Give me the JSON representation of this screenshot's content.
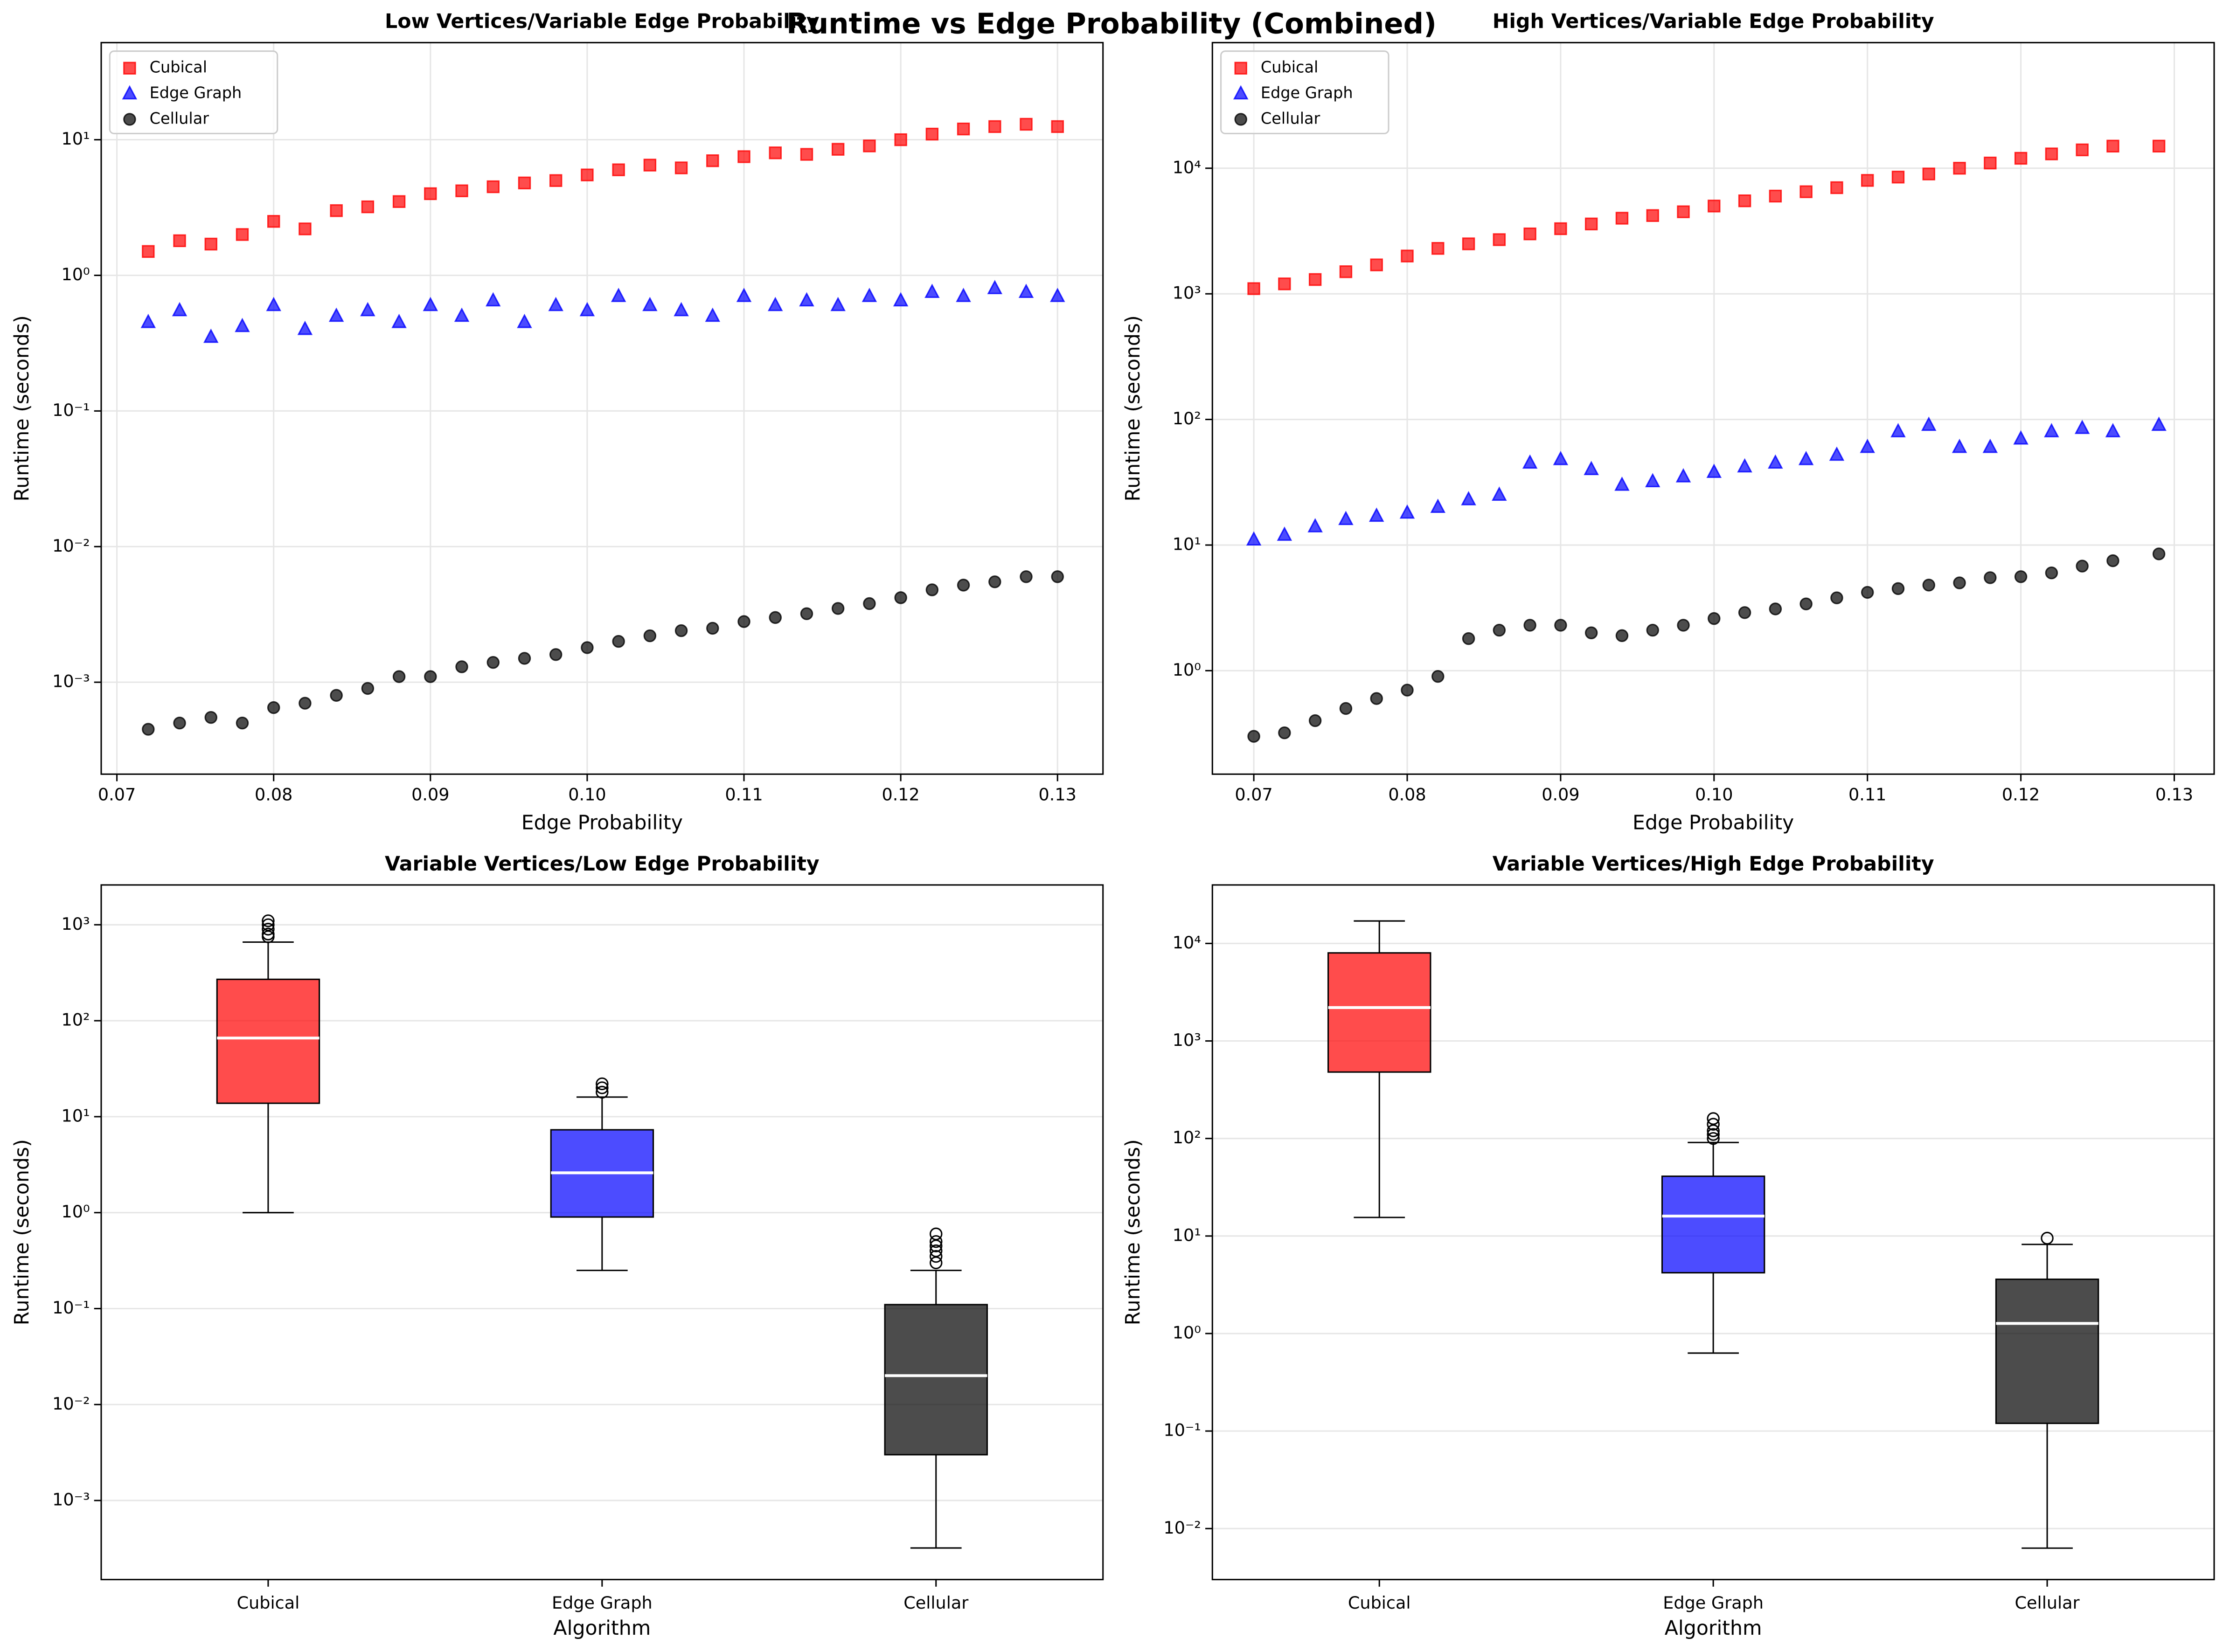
{
  "title": "Runtime vs Edge Probability (Combined)",
  "chart_data": [
    {
      "type": "scatter",
      "title": "Low Vertices/Variable Edge Probability",
      "xlabel": "Edge Probability",
      "ylabel": "Runtime (seconds)",
      "log_y": true,
      "grid": "both",
      "legend": "upper left",
      "xlim": [
        0.069,
        0.1329
      ],
      "xticks": [
        0.07,
        0.08,
        0.09,
        {
          "value": 0.1,
          "label": "0.10"
        },
        0.11,
        0.12,
        0.13
      ],
      "ylim": [
        0.00021,
        52
      ],
      "yticks": [
        {
          "value": 0.001,
          "label": "10⁻³"
        },
        {
          "value": 0.01,
          "label": "10⁻²"
        },
        {
          "value": 0.1,
          "label": "10⁻¹"
        },
        {
          "value": 1,
          "label": "10⁰"
        },
        {
          "value": 10,
          "label": "10¹"
        }
      ],
      "x": [
        0.072,
        0.074,
        0.076,
        0.078,
        0.08,
        0.082,
        0.084,
        0.086,
        0.088,
        0.09,
        0.092,
        0.094,
        0.096,
        0.098,
        0.1,
        0.102,
        0.104,
        0.106,
        0.108,
        0.11,
        0.112,
        0.114,
        0.116,
        0.118,
        0.12,
        0.122,
        0.124,
        0.126,
        0.128,
        0.13
      ],
      "series": [
        {
          "name": "Cubical",
          "color": "#ff0000",
          "marker": "square",
          "values": [
            1.5,
            1.8,
            1.7,
            2.0,
            2.5,
            2.2,
            3.0,
            3.2,
            3.5,
            4.0,
            4.2,
            4.5,
            4.8,
            5.0,
            5.5,
            6.0,
            6.5,
            6.2,
            7.0,
            7.5,
            8.0,
            7.8,
            8.5,
            9.0,
            10,
            11,
            12,
            12.5,
            13,
            12.5
          ]
        },
        {
          "name": "Edge Graph",
          "color": "#0000ff",
          "marker": "triangle",
          "values": [
            0.45,
            0.55,
            0.35,
            0.42,
            0.6,
            0.4,
            0.5,
            0.55,
            0.45,
            0.6,
            0.5,
            0.65,
            0.45,
            0.6,
            0.55,
            0.7,
            0.6,
            0.55,
            0.5,
            0.7,
            0.6,
            0.65,
            0.6,
            0.7,
            0.65,
            0.75,
            0.7,
            0.8,
            0.75,
            0.7
          ]
        },
        {
          "name": "Cellular",
          "color": "#000000",
          "marker": "circle",
          "values": [
            0.00045,
            0.0005,
            0.00055,
            0.0005,
            0.00065,
            0.0007,
            0.0008,
            0.0009,
            0.0011,
            0.0011,
            0.0013,
            0.0014,
            0.0015,
            0.0016,
            0.0018,
            0.002,
            0.0022,
            0.0024,
            0.0025,
            0.0028,
            0.003,
            0.0032,
            0.0035,
            0.0038,
            0.0042,
            0.0048,
            0.0052,
            0.0055,
            0.006,
            0.006
          ]
        }
      ]
    },
    {
      "type": "scatter",
      "title": "High Vertices/Variable Edge Probability",
      "xlabel": "Edge Probability",
      "ylabel": "Runtime (seconds)",
      "log_y": true,
      "grid": "both",
      "legend": "upper left",
      "xlim": [
        0.0673,
        0.1326
      ],
      "xticks": [
        0.07,
        0.08,
        0.09,
        {
          "value": 0.1,
          "label": "0.10"
        },
        0.11,
        0.12,
        0.13
      ],
      "ylim": [
        0.15,
        100000
      ],
      "yticks": [
        {
          "value": 1,
          "label": "10⁰"
        },
        {
          "value": 10,
          "label": "10¹"
        },
        {
          "value": 100,
          "label": "10²"
        },
        {
          "value": 1000,
          "label": "10³"
        },
        {
          "value": 10000,
          "label": "10⁴"
        }
      ],
      "x": [
        0.07,
        0.072,
        0.074,
        0.076,
        0.078,
        0.08,
        0.082,
        0.084,
        0.086,
        0.088,
        0.09,
        0.092,
        0.094,
        0.096,
        0.098,
        0.1,
        0.102,
        0.104,
        0.106,
        0.108,
        0.11,
        0.112,
        0.114,
        0.116,
        0.118,
        0.12,
        0.122,
        0.124,
        0.126,
        0.129
      ],
      "series": [
        {
          "name": "Cubical",
          "color": "#ff0000",
          "marker": "square",
          "values": [
            1100,
            1200,
            1300,
            1500,
            1700,
            2000,
            2300,
            2500,
            2700,
            3000,
            3300,
            3600,
            4000,
            4200,
            4500,
            5000,
            5500,
            6000,
            6500,
            7000,
            8000,
            8500,
            9000,
            10000,
            11000,
            12000,
            13000,
            14000,
            15000,
            15000
          ]
        },
        {
          "name": "Edge Graph",
          "color": "#0000ff",
          "marker": "triangle",
          "values": [
            11,
            12,
            14,
            16,
            17,
            18,
            20,
            23,
            25,
            45,
            48,
            40,
            30,
            32,
            35,
            38,
            42,
            45,
            48,
            52,
            60,
            80,
            90,
            60,
            60,
            70,
            80,
            85,
            80,
            90
          ]
        },
        {
          "name": "Cellular",
          "color": "#000000",
          "marker": "circle",
          "values": [
            0.3,
            0.32,
            0.4,
            0.5,
            0.6,
            0.7,
            0.9,
            1.8,
            2.1,
            2.3,
            2.3,
            2.0,
            1.9,
            2.1,
            2.3,
            2.6,
            2.9,
            3.1,
            3.4,
            3.8,
            4.2,
            4.5,
            4.8,
            5.0,
            5.5,
            5.6,
            6.0,
            6.8,
            7.5,
            8.5
          ]
        }
      ]
    },
    {
      "type": "box",
      "title": "Variable Vertices/Low Edge Probability",
      "xlabel": "Algorithm",
      "ylabel": "Runtime (seconds)",
      "log_y": true,
      "grid": "y",
      "ylim": [
        0.00015,
        2600
      ],
      "yticks": [
        {
          "value": 0.001,
          "label": "10⁻³"
        },
        {
          "value": 0.01,
          "label": "10⁻²"
        },
        {
          "value": 0.1,
          "label": "10⁻¹"
        },
        {
          "value": 1,
          "label": "10⁰"
        },
        {
          "value": 10,
          "label": "10¹"
        },
        {
          "value": 100,
          "label": "10²"
        },
        {
          "value": 1000,
          "label": "10³"
        }
      ],
      "boxes": [
        {
          "name": "Cubical",
          "color": "#ff0000",
          "whislo": 1.0,
          "q1": 13.8,
          "median": 66,
          "q3": 270,
          "whishi": 660,
          "fliers": [
            750,
            800,
            900,
            1000,
            1100
          ]
        },
        {
          "name": "Edge Graph",
          "color": "#0000ff",
          "whislo": 0.25,
          "q1": 0.9,
          "median": 2.6,
          "q3": 7.3,
          "whishi": 16,
          "fliers": [
            18,
            20,
            22
          ]
        },
        {
          "name": "Cellular",
          "color": "#000000",
          "whislo": 0.00032,
          "q1": 0.003,
          "median": 0.02,
          "q3": 0.11,
          "whishi": 0.25,
          "fliers": [
            0.3,
            0.35,
            0.4,
            0.45,
            0.5,
            0.6
          ]
        }
      ]
    },
    {
      "type": "box",
      "title": "Variable Vertices/High Edge Probability",
      "xlabel": "Algorithm",
      "ylabel": "Runtime (seconds)",
      "log_y": true,
      "grid": "y",
      "ylim": [
        0.003,
        39800
      ],
      "yticks": [
        {
          "value": 0.01,
          "label": "10⁻²"
        },
        {
          "value": 0.1,
          "label": "10⁻¹"
        },
        {
          "value": 1,
          "label": "10⁰"
        },
        {
          "value": 10,
          "label": "10¹"
        },
        {
          "value": 100,
          "label": "10²"
        },
        {
          "value": 1000,
          "label": "10³"
        },
        {
          "value": 10000,
          "label": "10⁴"
        }
      ],
      "boxes": [
        {
          "name": "Cubical",
          "color": "#ff0000",
          "whislo": 15.5,
          "q1": 480,
          "median": 2200,
          "q3": 8000,
          "whishi": 17000,
          "fliers": []
        },
        {
          "name": "Edge Graph",
          "color": "#0000ff",
          "whislo": 0.63,
          "q1": 4.2,
          "median": 16,
          "q3": 41,
          "whishi": 91,
          "fliers": [
            100,
            110,
            120,
            140,
            160
          ]
        },
        {
          "name": "Cellular",
          "color": "#000000",
          "whislo": 0.0063,
          "q1": 0.12,
          "median": 1.27,
          "q3": 3.6,
          "whishi": 8.2,
          "fliers": [
            9.5
          ]
        }
      ]
    }
  ]
}
